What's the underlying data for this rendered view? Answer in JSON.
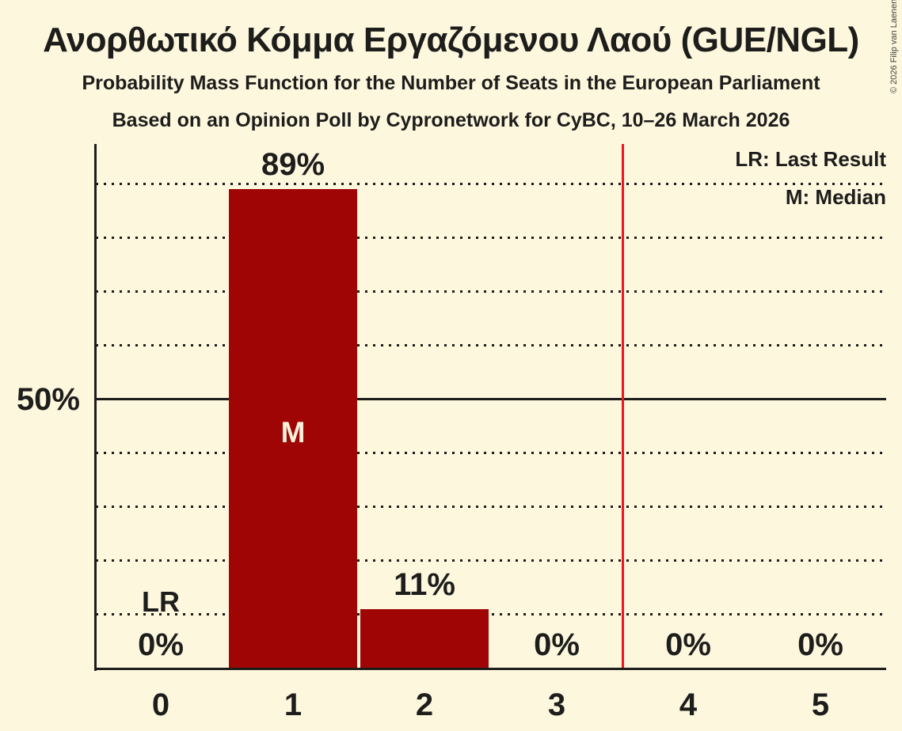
{
  "copyright": "© 2026 Filip van Laenen",
  "chart_data": {
    "type": "bar",
    "title": "Ανορθωτικό Κόμμα Εργαζόμενου Λαού (GUE/NGL)",
    "subtitle": "Probability Mass Function for the Number of Seats in the European Parliament",
    "based_on": "Based on an Opinion Poll by Cypronetwork for CyBC, 10–26 March 2026",
    "xlabel": "",
    "ylabel": "",
    "categories": [
      "0",
      "1",
      "2",
      "3",
      "4",
      "5"
    ],
    "values": [
      0,
      89,
      11,
      0,
      0,
      0
    ],
    "value_labels": [
      "0%",
      "89%",
      "11%",
      "0%",
      "0%",
      "0%"
    ],
    "ylim": [
      0,
      97
    ],
    "grid_step_pct": 10,
    "solid_gridline_pct": 50,
    "y_tick_label": "50%",
    "median_category": "1",
    "median_label": "M",
    "lr_category": "0",
    "lr_label": "LR",
    "lr_line_between": "3 and 4",
    "legend": [
      "LR: Last Result",
      "M: Median"
    ],
    "grid": true,
    "legend_position": "top-right",
    "colors": {
      "background": "#fdf7de",
      "bar": "#a00505",
      "lr_line": "#f0161d",
      "text": "#1d1d1b",
      "median_text": "#f8f1dc"
    }
  }
}
